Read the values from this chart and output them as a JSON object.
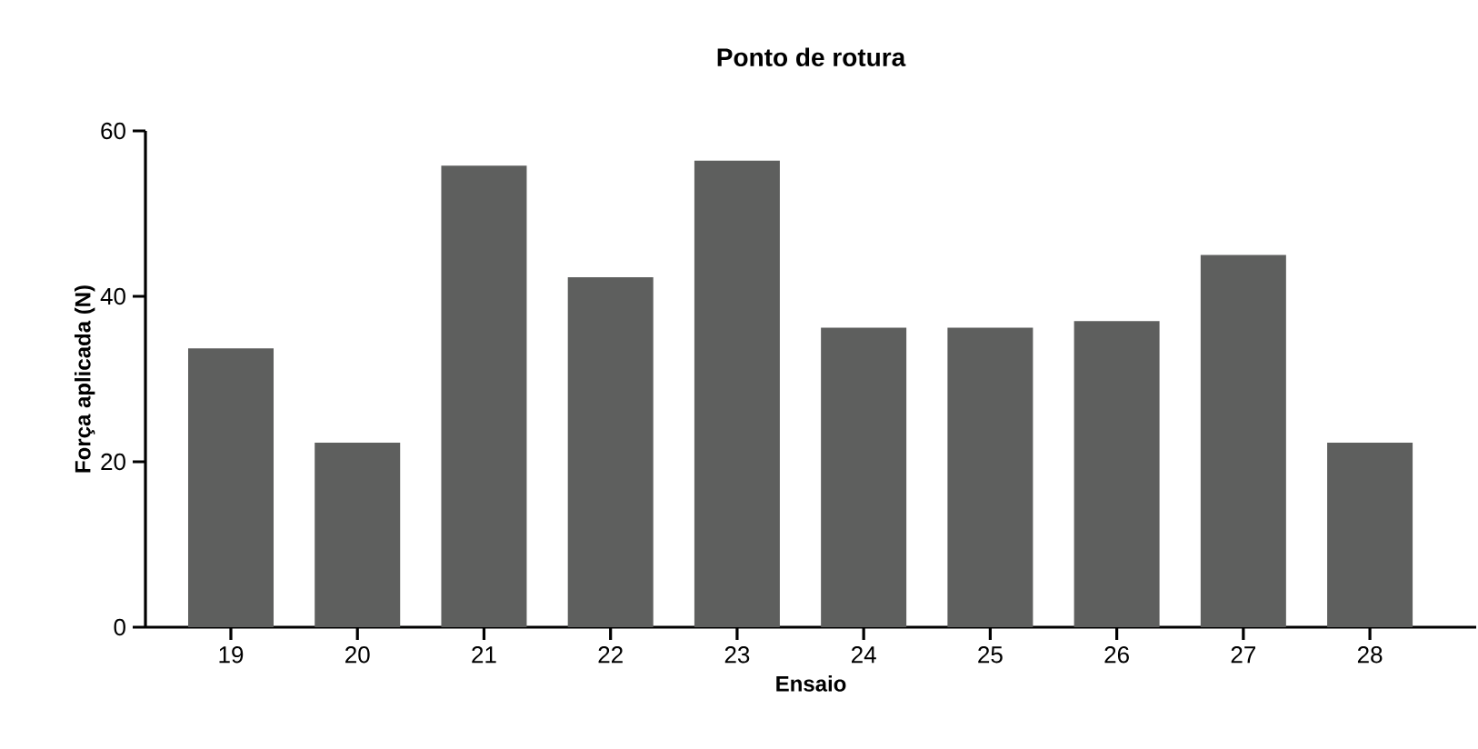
{
  "chart_data": {
    "type": "bar",
    "title": "Ponto de rotura",
    "xlabel": "Ensaio",
    "ylabel": "Força aplicada (N)",
    "categories": [
      "19",
      "20",
      "21",
      "22",
      "23",
      "24",
      "25",
      "26",
      "27",
      "28"
    ],
    "values": [
      33.7,
      22.3,
      55.8,
      42.3,
      56.4,
      36.2,
      36.2,
      37.0,
      45.0,
      22.3
    ],
    "color": "#5e5f5e",
    "ylim": [
      0,
      60
    ],
    "yticks": [
      0,
      20,
      40,
      60
    ],
    "grid": false
  }
}
